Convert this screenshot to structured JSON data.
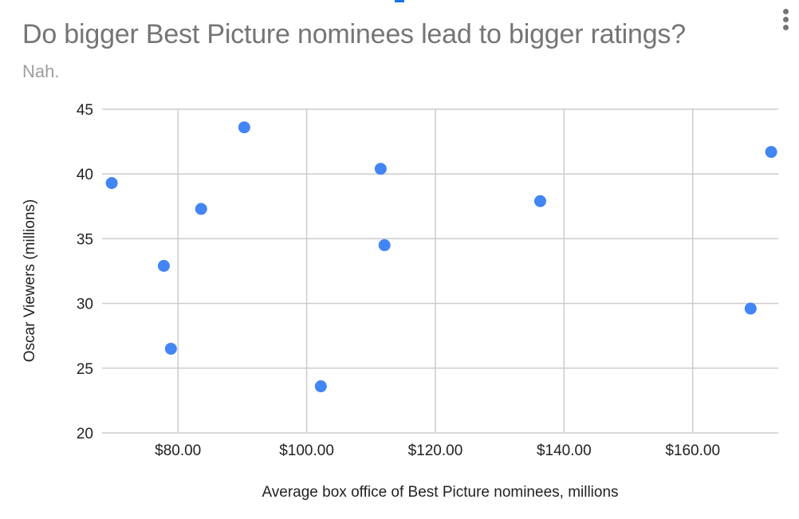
{
  "header": {
    "title": "Do bigger Best Picture nominees lead to bigger ratings?",
    "subtitle": "Nah.",
    "menu_icon": "more-vert-icon"
  },
  "colors": {
    "point": "#4285f4",
    "grid": "#cccccc",
    "title": "#757575",
    "subtitle": "#9e9e9e",
    "handle": "#1a73e8"
  },
  "chart_data": {
    "type": "scatter",
    "title": "Do bigger Best Picture nominees lead to bigger ratings?",
    "subtitle": "Nah.",
    "xlabel": "Average box office of Best Picture nominees, millions",
    "ylabel": "Oscar Viewers (millions)",
    "xlim": [
      68.2,
      173.3
    ],
    "ylim": [
      20,
      45
    ],
    "x_ticks": [
      80,
      100,
      120,
      140,
      160
    ],
    "x_tick_labels": [
      "$80.00",
      "$100.00",
      "$120.00",
      "$140.00",
      "$160.00"
    ],
    "y_ticks": [
      20,
      25,
      30,
      35,
      40,
      45
    ],
    "y_tick_labels": [
      "20",
      "25",
      "30",
      "35",
      "40",
      "45"
    ],
    "grid": true,
    "legend": "none",
    "series": [
      {
        "name": "Oscar Viewers (millions)",
        "points": [
          {
            "x": 69.7,
            "y": 39.3
          },
          {
            "x": 77.8,
            "y": 32.9
          },
          {
            "x": 78.9,
            "y": 26.5
          },
          {
            "x": 83.6,
            "y": 37.3
          },
          {
            "x": 90.3,
            "y": 43.6
          },
          {
            "x": 102.2,
            "y": 23.6
          },
          {
            "x": 111.5,
            "y": 40.4
          },
          {
            "x": 112.1,
            "y": 34.5
          },
          {
            "x": 136.3,
            "y": 37.9
          },
          {
            "x": 169.0,
            "y": 29.6
          },
          {
            "x": 172.2,
            "y": 41.7
          }
        ]
      }
    ]
  }
}
